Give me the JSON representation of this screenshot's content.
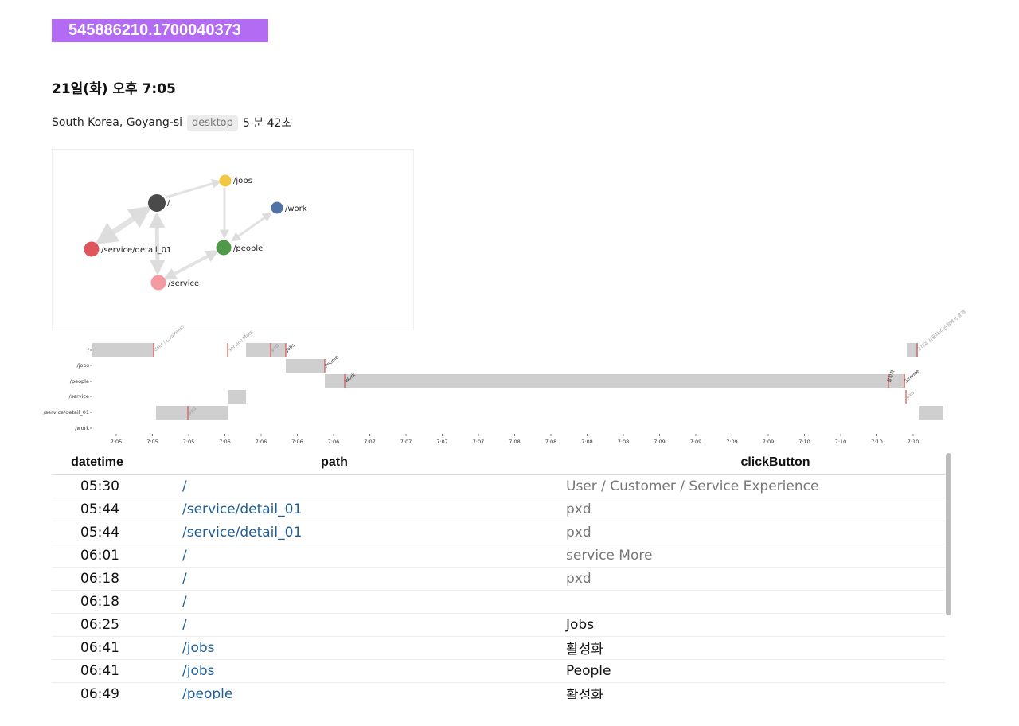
{
  "session": {
    "id": "545886210.1700040373",
    "date": "21일(화) 오후 7:05",
    "location": "South Korea, Goyang-si",
    "device": "desktop",
    "duration": "5 분 42초"
  },
  "colors": {
    "accent": "#b26bf2",
    "path_link": "#1f5f96",
    "bar": "#cfcfcf",
    "click_marker": "#e05050"
  },
  "graph": {
    "nodes": [
      {
        "id": "root",
        "label": "/",
        "color": "#4a4a4a"
      },
      {
        "id": "jobs",
        "label": "/jobs",
        "color": "#f2c744"
      },
      {
        "id": "work",
        "label": "/work",
        "color": "#4f73a6"
      },
      {
        "id": "people",
        "label": "/people",
        "color": "#4f9a48"
      },
      {
        "id": "detail",
        "label": "/service/detail_01",
        "color": "#e0555c"
      },
      {
        "id": "service",
        "label": "/service",
        "color": "#f59aa3"
      }
    ]
  },
  "timeline": {
    "rows": [
      "/",
      "/jobs",
      "/people",
      "/service",
      "/service/detail_01",
      "/work"
    ],
    "ticks": [
      "7:05",
      "7:05",
      "7:05",
      "7:06",
      "7:06",
      "7:06",
      "7:06",
      "7:07",
      "7:07",
      "7:07",
      "7:07",
      "7:08",
      "7:08",
      "7:08",
      "7:08",
      "7:09",
      "7:09",
      "7:09",
      "7:09",
      "7:10",
      "7:10",
      "7:10",
      "7:10"
    ],
    "click_labels": [
      "User / Customer",
      "service More",
      "pxd",
      "Jobs",
      "People",
      "Work",
      "pxd",
      "활성화",
      "Service",
      "pxd",
      "고객과 사용자의 관점에서 문제"
    ]
  },
  "table": {
    "headers": {
      "datetime": "datetime",
      "path": "path",
      "clickButton": "clickButton"
    },
    "rows": [
      {
        "time": "05:30",
        "path": "/",
        "button": "User / Customer / Service Experience",
        "muted": true
      },
      {
        "time": "05:44",
        "path": "/service/detail_01",
        "button": "pxd",
        "muted": true
      },
      {
        "time": "05:44",
        "path": "/service/detail_01",
        "button": "pxd",
        "muted": true
      },
      {
        "time": "06:01",
        "path": "/",
        "button": "service More",
        "muted": true
      },
      {
        "time": "06:18",
        "path": "/",
        "button": "pxd",
        "muted": true
      },
      {
        "time": "06:18",
        "path": "/",
        "button": "",
        "muted": false
      },
      {
        "time": "06:25",
        "path": "/",
        "button": "Jobs",
        "muted": false
      },
      {
        "time": "06:41",
        "path": "/jobs",
        "button": "활성화",
        "muted": false
      },
      {
        "time": "06:41",
        "path": "/jobs",
        "button": "People",
        "muted": false
      },
      {
        "time": "06:49",
        "path": "/people",
        "button": "활성화",
        "muted": false
      }
    ]
  }
}
